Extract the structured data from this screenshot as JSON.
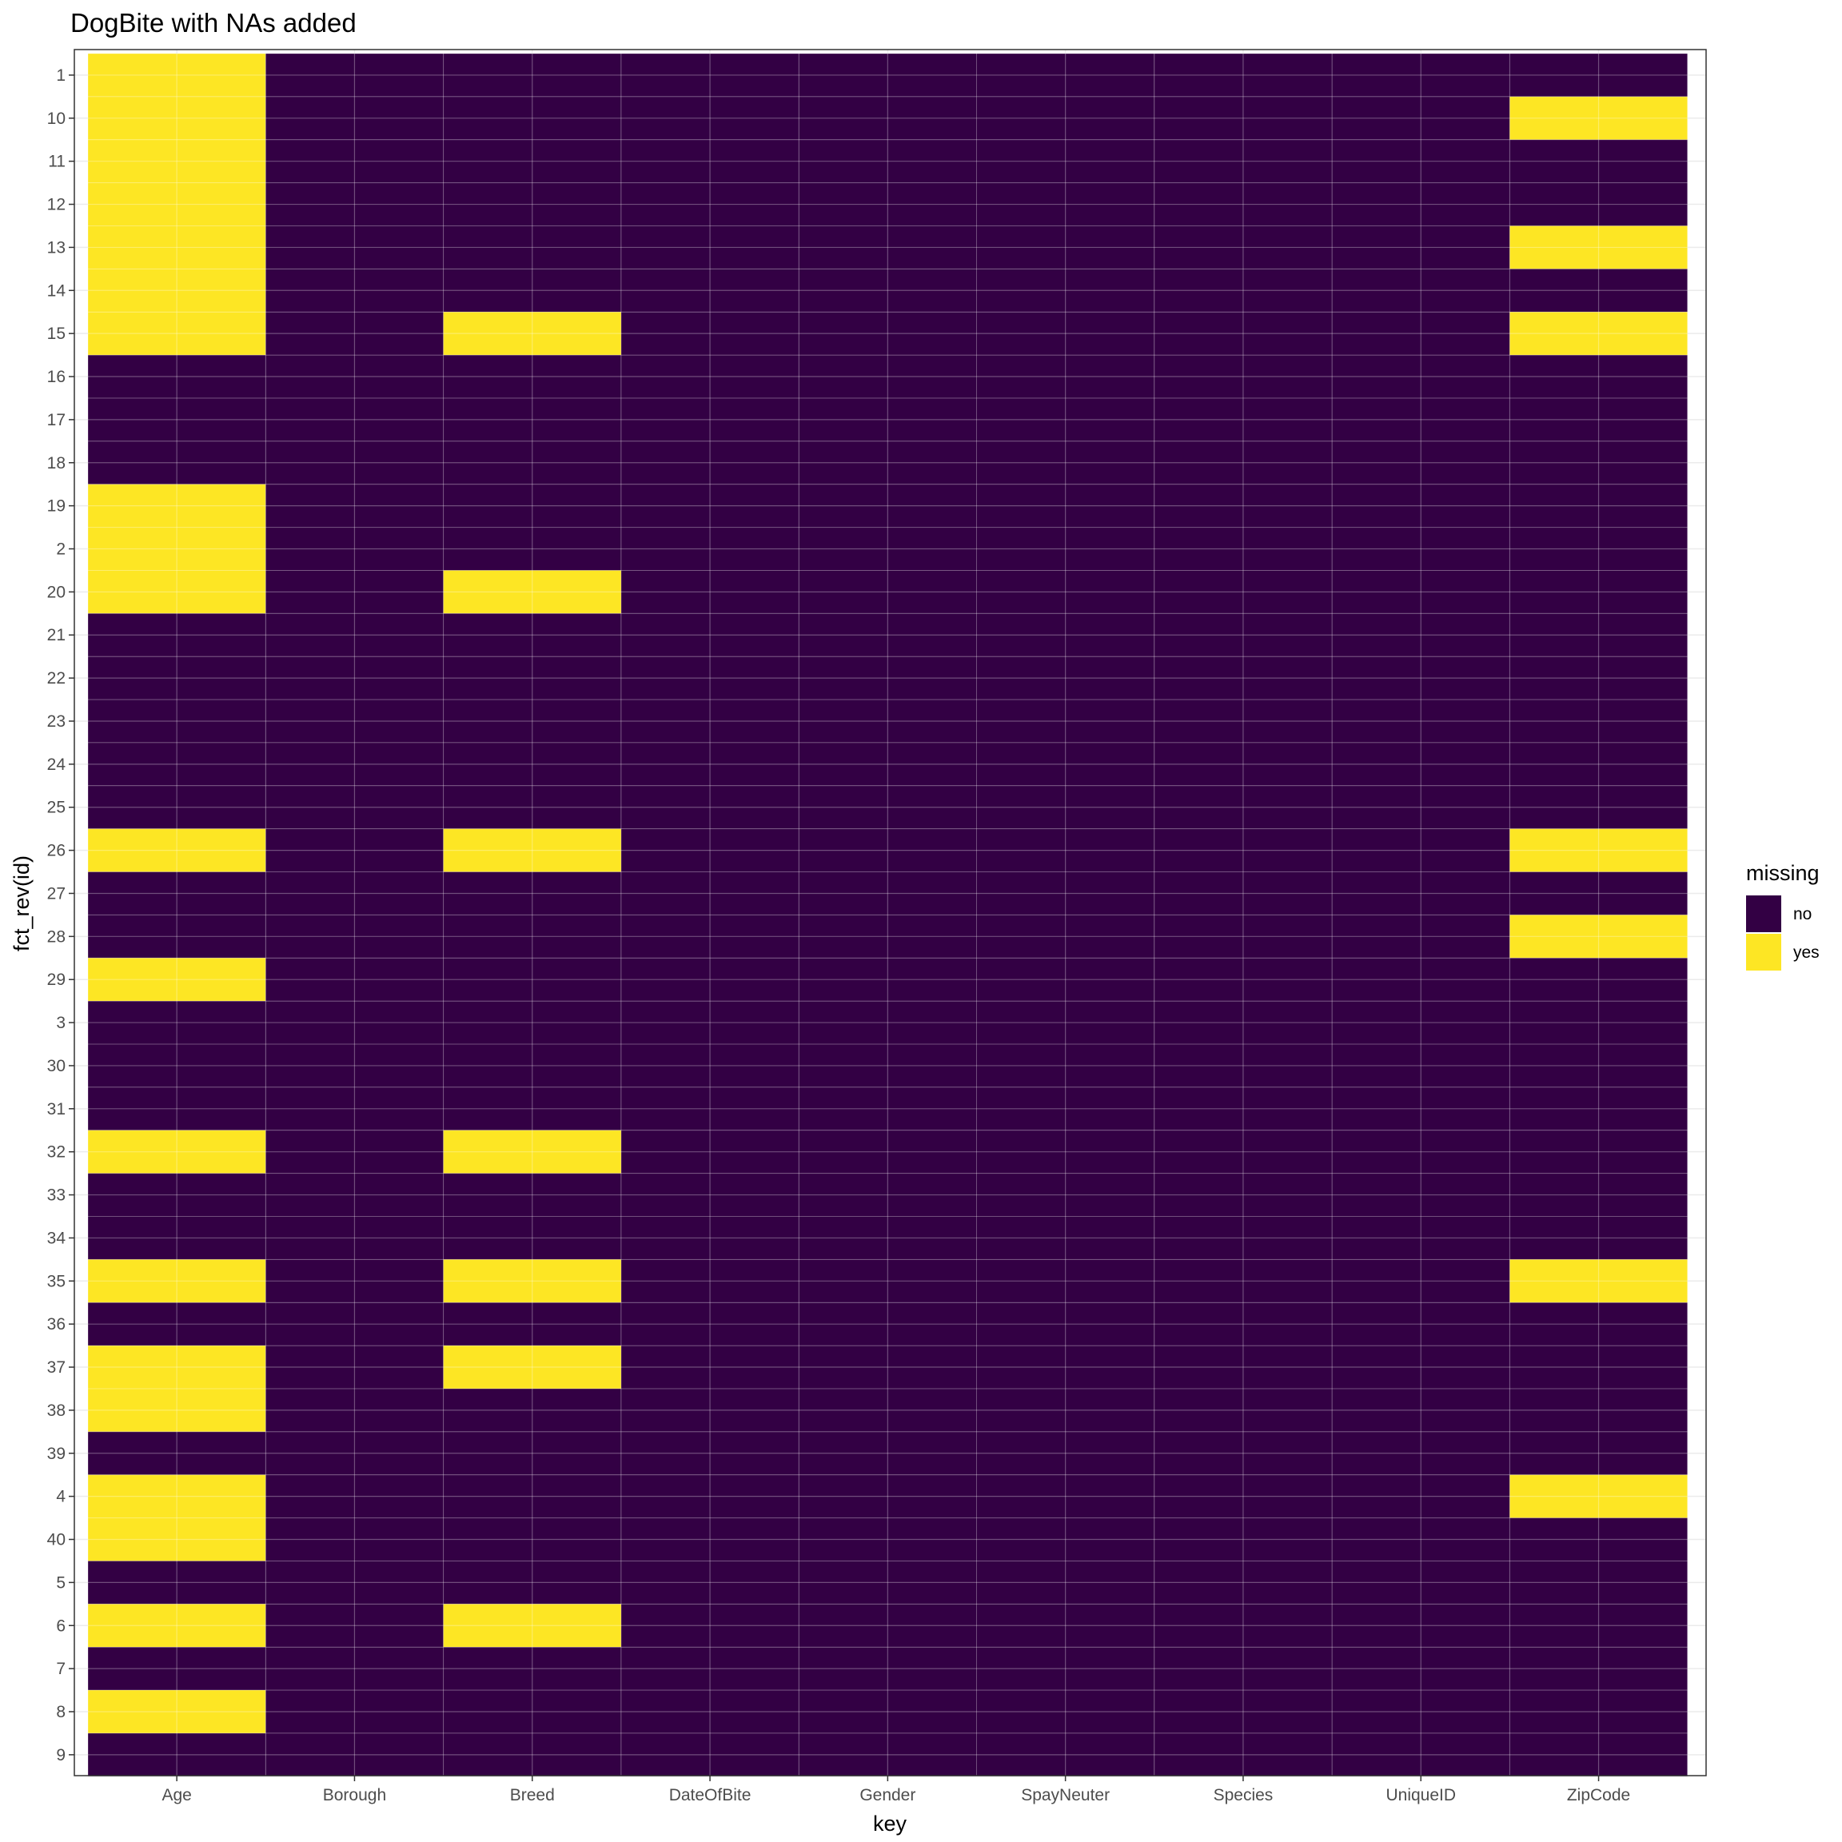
{
  "chart_data": {
    "type": "heatmap",
    "title": "DogBite with NAs added",
    "xlabel": "key",
    "ylabel": "fct_rev(id)",
    "x_categories": [
      "Age",
      "Borough",
      "Breed",
      "DateOfBite",
      "Gender",
      "SpayNeuter",
      "Species",
      "UniqueID",
      "ZipCode"
    ],
    "y_categories": [
      "1",
      "10",
      "11",
      "12",
      "13",
      "14",
      "15",
      "16",
      "17",
      "18",
      "19",
      "2",
      "20",
      "21",
      "22",
      "23",
      "24",
      "25",
      "26",
      "27",
      "28",
      "29",
      "3",
      "30",
      "31",
      "32",
      "33",
      "34",
      "35",
      "36",
      "37",
      "38",
      "39",
      "4",
      "40",
      "5",
      "6",
      "7",
      "8",
      "9"
    ],
    "legend": {
      "title": "missing",
      "placement": "right",
      "entries": [
        {
          "label": "no",
          "color": "#330044"
        },
        {
          "label": "yes",
          "color": "#fde624"
        }
      ]
    },
    "missing_yes": {
      "Age": [
        "1",
        "10",
        "11",
        "12",
        "13",
        "14",
        "15",
        "19",
        "2",
        "20",
        "26",
        "29",
        "32",
        "35",
        "37",
        "38",
        "4",
        "40",
        "6",
        "8"
      ],
      "Borough": [],
      "Breed": [
        "15",
        "20",
        "26",
        "32",
        "35",
        "37",
        "6"
      ],
      "DateOfBite": [],
      "Gender": [],
      "SpayNeuter": [],
      "Species": [],
      "UniqueID": [],
      "ZipCode": [
        "10",
        "13",
        "15",
        "26",
        "28",
        "35",
        "4"
      ]
    },
    "grid": true
  }
}
